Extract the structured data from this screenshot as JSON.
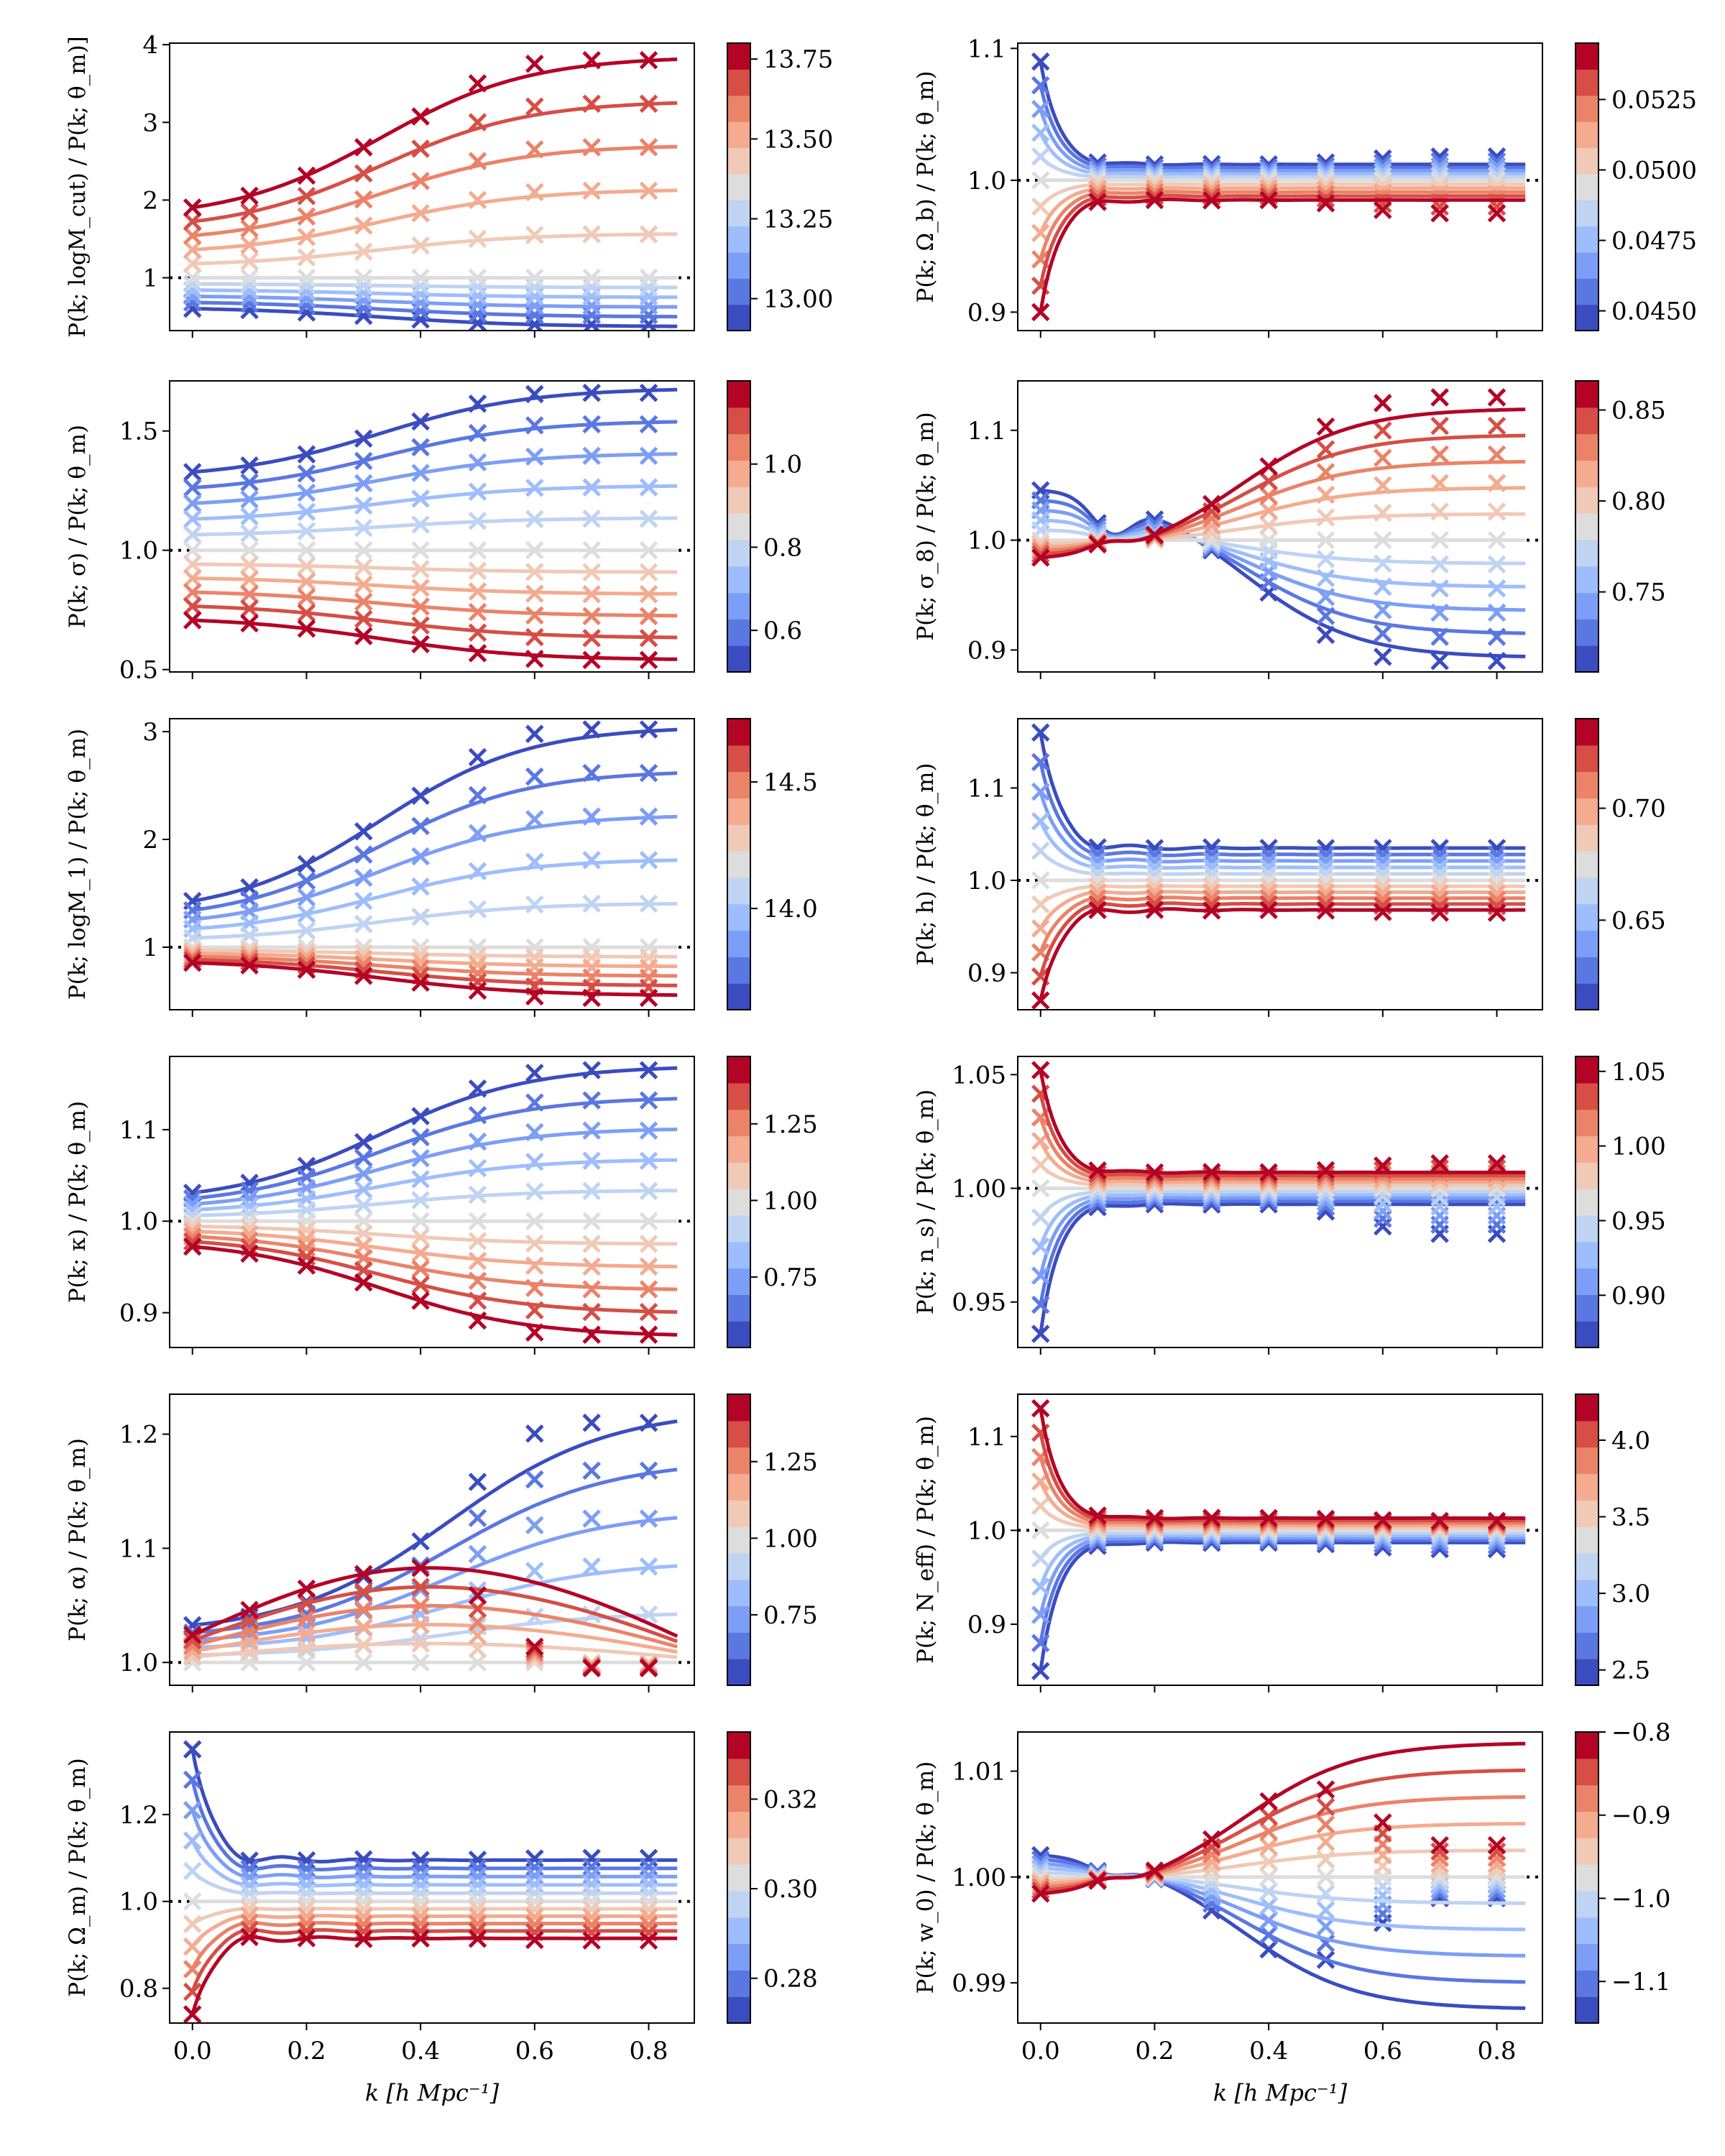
{
  "figure": {
    "xlabel": "k [h Mpc⁻¹]",
    "xticks": [
      0.0,
      0.2,
      0.4,
      0.6,
      0.8
    ],
    "xtick_labels": [
      "0.0",
      "0.2",
      "0.4",
      "0.6",
      "0.8"
    ],
    "xlim": [
      -0.04,
      0.88
    ],
    "sample_k": [
      0.0,
      0.1,
      0.2,
      0.3,
      0.4,
      0.5,
      0.6,
      0.7,
      0.8
    ],
    "colormap": "coolwarm",
    "reference_line": 1.0
  },
  "chart_data": [
    {
      "type": "line",
      "id": "logMcut",
      "ylabel": "P(k; logM_cut) / P(k; θ_m)]",
      "ylim": [
        0.32,
        4.02
      ],
      "yticks": [
        1,
        2,
        3,
        4
      ],
      "ytick_labels": [
        "1",
        "2",
        "3",
        "4"
      ],
      "shape": "growth",
      "low_k": {
        "top": 1.75,
        "bottom": 0.62
      },
      "high_k": {
        "top": 3.85,
        "bottom": 0.37
      },
      "markers_high": {
        "top": 3.8,
        "bottom": 0.4
      },
      "n_curves": 11,
      "reversed": false,
      "colorbar": {
        "range": [
          12.9,
          13.8
        ],
        "ticks": [
          13.0,
          13.25,
          13.5,
          13.75
        ],
        "tick_labels": [
          "13.00",
          "13.25",
          "13.50",
          "13.75"
        ]
      }
    },
    {
      "type": "line",
      "id": "Omega_b",
      "ylabel": "P(k; Ω_b) / P(k; θ_m)",
      "ylim": [
        0.886,
        1.104
      ],
      "yticks": [
        0.9,
        1.0,
        1.1
      ],
      "ytick_labels": [
        "0.9",
        "1.0",
        "1.1"
      ],
      "shape": "spike",
      "low_k": {
        "top": 1.09,
        "bottom": 0.9
      },
      "high_k": {
        "top": 1.012,
        "bottom": 0.985
      },
      "markers_high": {
        "top": 1.018,
        "bottom": 0.975
      },
      "n_curves": 11,
      "reversed": true,
      "colorbar": {
        "range": [
          0.0443,
          0.0545
        ],
        "ticks": [
          0.045,
          0.0475,
          0.05,
          0.0525
        ],
        "tick_labels": [
          "0.0450",
          "0.0475",
          "0.0500",
          "0.0525"
        ]
      }
    },
    {
      "type": "line",
      "id": "sigma",
      "ylabel": "P(k; σ) / P(k; θ_m)",
      "ylim": [
        0.49,
        1.71
      ],
      "yticks": [
        0.5,
        1.0,
        1.5
      ],
      "ytick_labels": [
        "0.5",
        "1.0",
        "1.5"
      ],
      "shape": "growth",
      "low_k": {
        "top": 1.3,
        "bottom": 0.72
      },
      "high_k": {
        "top": 1.68,
        "bottom": 0.54
      },
      "markers_high": {
        "top": 1.66,
        "bottom": 0.54
      },
      "n_curves": 11,
      "reversed": true,
      "colorbar": {
        "range": [
          0.5,
          1.2
        ],
        "ticks": [
          0.6,
          0.8,
          1.0
        ],
        "tick_labels": [
          "0.6",
          "0.8",
          "1.0"
        ]
      }
    },
    {
      "type": "line",
      "id": "sigma8",
      "ylabel": "P(k; σ_8) / P(k; θ_m)",
      "ylim": [
        0.88,
        1.145
      ],
      "yticks": [
        0.9,
        1.0,
        1.1
      ],
      "ytick_labels": [
        "0.9",
        "1.0",
        "1.1"
      ],
      "shape": "cross",
      "low_k": {
        "top": 1.05,
        "bottom": 0.98
      },
      "high_k": {
        "top": 1.12,
        "bottom": 0.893
      },
      "markers_high": {
        "top": 1.13,
        "bottom": 0.89
      },
      "n_curves": 11,
      "reversed": false,
      "colorbar": {
        "range": [
          0.706,
          0.866
        ],
        "ticks": [
          0.75,
          0.8,
          0.85
        ],
        "tick_labels": [
          "0.75",
          "0.80",
          "0.85"
        ]
      }
    },
    {
      "type": "line",
      "id": "logM1",
      "ylabel": "P(k; logM_1) / P(k; θ_m)",
      "ylim": [
        0.42,
        3.12
      ],
      "yticks": [
        1,
        2,
        3
      ],
      "ytick_labels": [
        "1",
        "2",
        "3"
      ],
      "shape": "growth",
      "low_k": {
        "top": 1.3,
        "bottom": 0.88
      },
      "high_k": {
        "top": 3.05,
        "bottom": 0.55
      },
      "markers_high": {
        "top": 3.02,
        "bottom": 0.53
      },
      "n_curves": 11,
      "reversed": true,
      "colorbar": {
        "range": [
          13.6,
          14.75
        ],
        "ticks": [
          14.0,
          14.5
        ],
        "tick_labels": [
          "14.0",
          "14.5"
        ]
      }
    },
    {
      "type": "line",
      "id": "h",
      "ylabel": "P(k; h) / P(k; θ_m)",
      "ylim": [
        0.86,
        1.175
      ],
      "yticks": [
        0.9,
        1.0,
        1.1
      ],
      "ytick_labels": [
        "0.9",
        "1.0",
        "1.1"
      ],
      "shape": "spike",
      "low_k": {
        "top": 1.16,
        "bottom": 0.87
      },
      "high_k": {
        "top": 1.035,
        "bottom": 0.968
      },
      "markers_high": {
        "top": 1.035,
        "bottom": 0.965
      },
      "n_curves": 11,
      "reversed": true,
      "colorbar": {
        "range": [
          0.61,
          0.74
        ],
        "ticks": [
          0.65,
          0.7
        ],
        "tick_labels": [
          "0.65",
          "0.70"
        ]
      }
    },
    {
      "type": "line",
      "id": "kappa",
      "ylabel": "P(k; κ) / P(k; θ_m)",
      "ylim": [
        0.862,
        1.18
      ],
      "yticks": [
        0.9,
        1.0,
        1.1
      ],
      "ytick_labels": [
        "0.9",
        "1.0",
        "1.1"
      ],
      "shape": "growth",
      "low_k": {
        "top": 1.02,
        "bottom": 0.98
      },
      "high_k": {
        "top": 1.17,
        "bottom": 0.874
      },
      "markers_high": {
        "top": 1.165,
        "bottom": 0.876
      },
      "n_curves": 11,
      "reversed": true,
      "colorbar": {
        "range": [
          0.52,
          1.47
        ],
        "ticks": [
          0.75,
          1.0,
          1.25
        ],
        "tick_labels": [
          "0.75",
          "1.00",
          "1.25"
        ]
      }
    },
    {
      "type": "line",
      "id": "n_s",
      "ylabel": "P(k; n_s) / P(k; θ_m)",
      "ylim": [
        0.93,
        1.058
      ],
      "yticks": [
        0.95,
        1.0,
        1.05
      ],
      "ytick_labels": [
        "0.95",
        "1.00",
        "1.05"
      ],
      "shape": "spike",
      "low_k": {
        "top": 1.052,
        "bottom": 0.936
      },
      "high_k": {
        "top": 1.007,
        "bottom": 0.993
      },
      "markers_high": {
        "top": 1.011,
        "bottom": 0.98
      },
      "n_curves": 11,
      "reversed": false,
      "colorbar": {
        "range": [
          0.865,
          1.06
        ],
        "ticks": [
          0.9,
          0.95,
          1.0,
          1.05
        ],
        "tick_labels": [
          "0.90",
          "0.95",
          "1.00",
          "1.05"
        ]
      }
    },
    {
      "type": "line",
      "id": "alpha",
      "ylabel": "P(k; α) / P(k; θ_m)",
      "ylim": [
        0.98,
        1.235
      ],
      "yticks": [
        1.0,
        1.1,
        1.2
      ],
      "ytick_labels": [
        "1.0",
        "1.1",
        "1.2"
      ],
      "shape": "alpha",
      "low_k": {
        "top": 1.025,
        "bottom": 1.0
      },
      "high_k": {
        "top": 1.222,
        "bottom": 1.0
      },
      "markers_high": {
        "top": 1.21,
        "bottom": 0.995
      },
      "n_curves": 11,
      "reversed": true,
      "colorbar": {
        "range": [
          0.52,
          1.47
        ],
        "ticks": [
          0.75,
          1.0,
          1.25
        ],
        "tick_labels": [
          "0.75",
          "1.00",
          "1.25"
        ]
      }
    },
    {
      "type": "line",
      "id": "N_eff",
      "ylabel": "P(k; N_eff) / P(k; θ_m)",
      "ylim": [
        0.835,
        1.145
      ],
      "yticks": [
        0.9,
        1.0,
        1.1
      ],
      "ytick_labels": [
        "0.9",
        "1.0",
        "1.1"
      ],
      "shape": "spike",
      "low_k": {
        "top": 1.13,
        "bottom": 0.85
      },
      "high_k": {
        "top": 1.013,
        "bottom": 0.987
      },
      "markers_high": {
        "top": 1.01,
        "bottom": 0.98
      },
      "n_curves": 11,
      "reversed": false,
      "colorbar": {
        "range": [
          2.4,
          4.3
        ],
        "ticks": [
          2.5,
          3.0,
          3.5,
          4.0
        ],
        "tick_labels": [
          "2.5",
          "3.0",
          "3.5",
          "4.0"
        ]
      }
    },
    {
      "type": "line",
      "id": "Omega_m",
      "ylabel": "P(k; Ω_m) / P(k; θ_m)",
      "ylim": [
        0.72,
        1.39
      ],
      "yticks": [
        0.8,
        1.0,
        1.2
      ],
      "ytick_labels": [
        "0.8",
        "1.0",
        "1.2"
      ],
      "shape": "spike",
      "low_k": {
        "top": 1.35,
        "bottom": 0.74
      },
      "high_k": {
        "top": 1.095,
        "bottom": 0.915
      },
      "markers_high": {
        "top": 1.1,
        "bottom": 0.91
      },
      "n_curves": 11,
      "reversed": true,
      "colorbar": {
        "range": [
          0.27,
          0.335
        ],
        "ticks": [
          0.28,
          0.3,
          0.32
        ],
        "tick_labels": [
          "0.28",
          "0.30",
          "0.32"
        ]
      }
    },
    {
      "type": "line",
      "id": "w0",
      "ylabel": "P(k; w_0) / P(k; θ_m)",
      "ylim": [
        0.9862,
        1.0137
      ],
      "yticks": [
        0.99,
        1.0,
        1.01
      ],
      "ytick_labels": [
        "0.99",
        "1.00",
        "1.01"
      ],
      "shape": "cross",
      "low_k": {
        "top": 1.0025,
        "bottom": 0.998
      },
      "high_k": {
        "top": 1.0127,
        "bottom": 0.9875
      },
      "markers_high": {
        "top": 1.003,
        "bottom": 0.998
      },
      "n_curves": 11,
      "reversed": false,
      "colorbar": {
        "range": [
          -1.15,
          -0.8
        ],
        "ticks": [
          -1.1,
          -1.0,
          -0.9,
          -0.8
        ],
        "tick_labels": [
          "−1.1",
          "−1.0",
          "−0.9",
          "−0.8"
        ]
      }
    }
  ]
}
